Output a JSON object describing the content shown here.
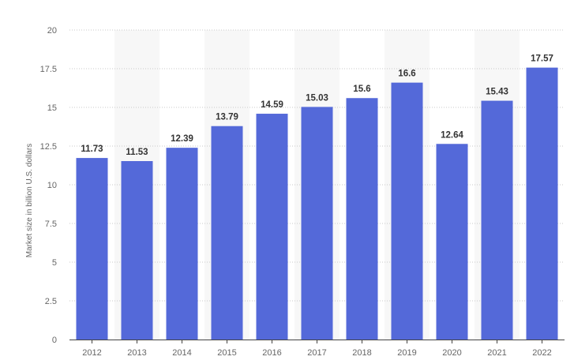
{
  "chart_data": {
    "type": "bar",
    "title": "",
    "xlabel": "",
    "ylabel": "Market size in billion U.S. dollars",
    "categories": [
      "2012",
      "2013",
      "2014",
      "2015",
      "2016",
      "2017",
      "2018",
      "2019",
      "2020",
      "2021",
      "2022"
    ],
    "values": [
      11.73,
      11.53,
      12.39,
      13.79,
      14.59,
      15.03,
      15.6,
      16.6,
      12.64,
      15.43,
      17.57
    ],
    "value_labels": [
      "11.73",
      "11.53",
      "12.39",
      "13.79",
      "14.59",
      "15.03",
      "15.6",
      "16.6",
      "12.64",
      "15.43",
      "17.57"
    ],
    "ylim": [
      0,
      20
    ],
    "yticks": [
      "0",
      "2.5",
      "5",
      "7.5",
      "10",
      "12.5",
      "15",
      "17.5",
      "20"
    ],
    "grid": "horizontal dotted",
    "legend": "none",
    "colors": {
      "bar": "#5469d9",
      "band": "#f7f7f7",
      "grid": "#c8c8c8",
      "axis": "#444444",
      "label": "#333333",
      "tick": "#666666"
    }
  }
}
